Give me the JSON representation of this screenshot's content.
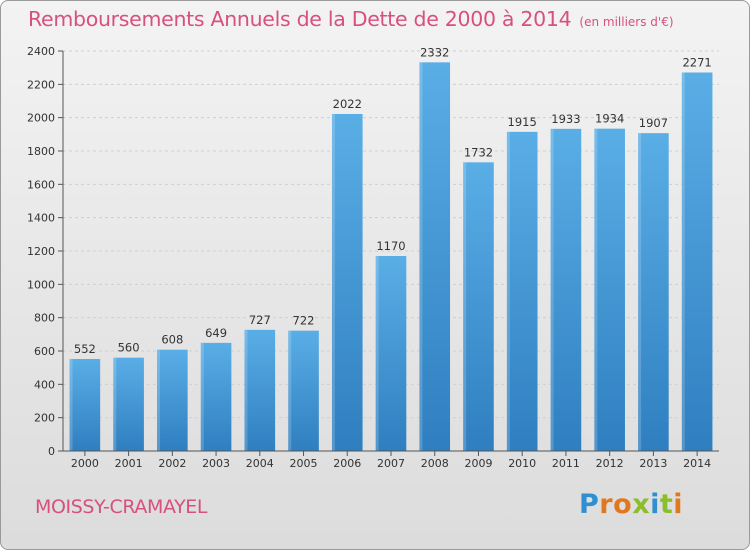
{
  "header": {
    "title": "Remboursements Annuels de la Dette de 2000 à 2014",
    "subtitle": "(en milliers d'€)"
  },
  "footer": {
    "commune": "MOISSY-CRAMAYEL",
    "logo_text": "Proxiti"
  },
  "colors": {
    "title": "#d8507d",
    "bar_top": "#5aaee6",
    "bar_bottom": "#2f7fc0",
    "axis": "#555555",
    "grid": "#cfcfcf"
  },
  "chart_data": {
    "type": "bar",
    "title": "Remboursements Annuels de la Dette de 2000 à 2014",
    "subtitle": "(en milliers d'€)",
    "xlabel": "",
    "ylabel": "",
    "ylim": [
      0,
      2400
    ],
    "yticks": [
      0,
      200,
      400,
      600,
      800,
      1000,
      1200,
      1400,
      1600,
      1800,
      2000,
      2200,
      2400
    ],
    "grid": true,
    "categories": [
      "2000",
      "2001",
      "2002",
      "2003",
      "2004",
      "2005",
      "2006",
      "2007",
      "2008",
      "2009",
      "2010",
      "2011",
      "2012",
      "2013",
      "2014"
    ],
    "values": [
      552,
      560,
      608,
      649,
      727,
      722,
      2022,
      1170,
      2332,
      1732,
      1915,
      1933,
      1934,
      1907,
      2271
    ]
  }
}
